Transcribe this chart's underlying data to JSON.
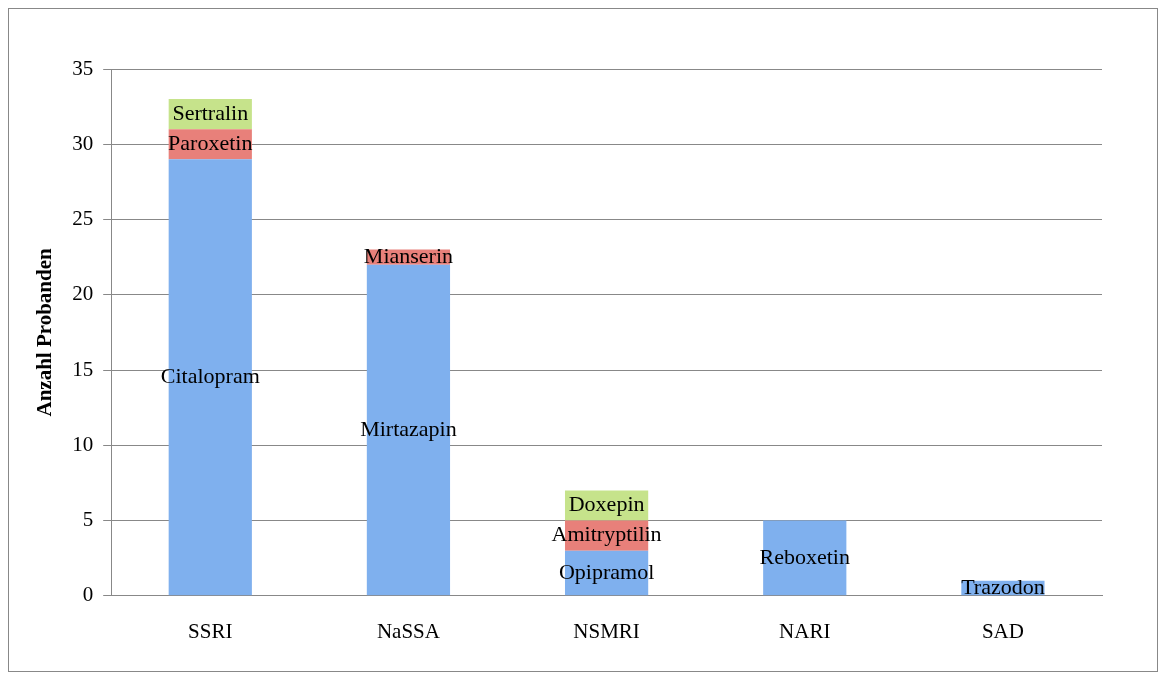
{
  "chart_data": {
    "type": "bar",
    "stacked": true,
    "ylabel": "Anzahl Probanden",
    "categories": [
      "SSRI",
      "NaSSA",
      "NSMRI",
      "NARI",
      "SAD"
    ],
    "series": [
      {
        "name": "Citalopram",
        "color": "#7fb0ee",
        "values": [
          29,
          null,
          null,
          null,
          null
        ]
      },
      {
        "name": "Mirtazapin",
        "color": "#7fb0ee",
        "values": [
          null,
          22,
          null,
          null,
          null
        ]
      },
      {
        "name": "Opipramol",
        "color": "#7fb0ee",
        "values": [
          null,
          null,
          3,
          null,
          null
        ]
      },
      {
        "name": "Reboxetin",
        "color": "#7fb0ee",
        "values": [
          null,
          null,
          null,
          5,
          null
        ]
      },
      {
        "name": "Trazodon",
        "color": "#7fb0ee",
        "values": [
          null,
          null,
          null,
          null,
          1
        ]
      },
      {
        "name": "Paroxetin",
        "color": "#e8807a",
        "values": [
          2,
          null,
          null,
          null,
          null
        ]
      },
      {
        "name": "Mianserin",
        "color": "#e8807a",
        "values": [
          null,
          1,
          null,
          null,
          null
        ]
      },
      {
        "name": "Amitryptilin",
        "color": "#e8807a",
        "values": [
          null,
          null,
          2,
          null,
          null
        ]
      },
      {
        "name": "Sertralin",
        "color": "#c6e38b",
        "values": [
          2,
          null,
          null,
          null,
          null
        ]
      },
      {
        "name": "Doxepin",
        "color": "#c6e38b",
        "values": [
          null,
          null,
          2,
          null,
          null
        ]
      }
    ],
    "ylim": [
      0,
      35
    ],
    "yticks": [
      0,
      5,
      10,
      15,
      20,
      25,
      30,
      35
    ],
    "grid": "y",
    "legend": false
  }
}
